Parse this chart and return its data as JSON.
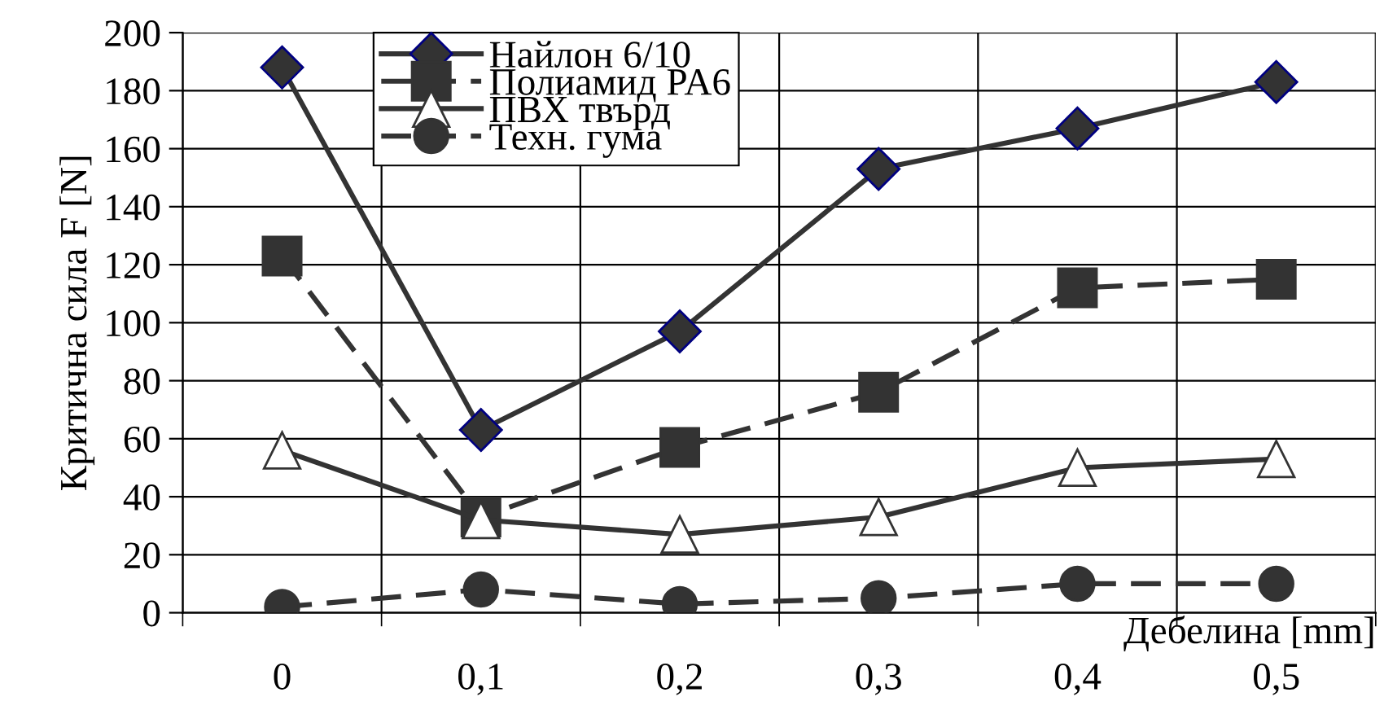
{
  "chart_data": {
    "type": "line",
    "ylabel": "Критична сила F [N]",
    "xlabel": "Дебелина [mm]",
    "categories": [
      "0",
      "0,1",
      "0,2",
      "0,3",
      "0,4",
      "0,5"
    ],
    "series": [
      {
        "name": "Найлон 6/10",
        "color": "#333333",
        "marker": "diamond",
        "line_style": "solid",
        "values": [
          188,
          63,
          97,
          153,
          167,
          183
        ]
      },
      {
        "name": "Полиамид PA6",
        "color": "#333333",
        "marker": "square",
        "line_style": "dashed",
        "values": [
          123,
          33,
          57,
          76,
          112,
          115
        ]
      },
      {
        "name": "ПВХ твърд",
        "color": "#333333",
        "marker": "triangle",
        "line_style": "solid",
        "values": [
          56,
          32,
          27,
          33,
          50,
          53
        ]
      },
      {
        "name": "Техн. гума",
        "color": "#333333",
        "marker": "circle",
        "line_style": "dashed",
        "values": [
          2,
          8,
          3,
          5,
          10,
          10
        ]
      }
    ],
    "ylim": [
      0,
      200
    ],
    "yticks": [
      0,
      20,
      40,
      60,
      80,
      100,
      120,
      140,
      160,
      180,
      200
    ],
    "grid": true,
    "legend": "top left"
  }
}
